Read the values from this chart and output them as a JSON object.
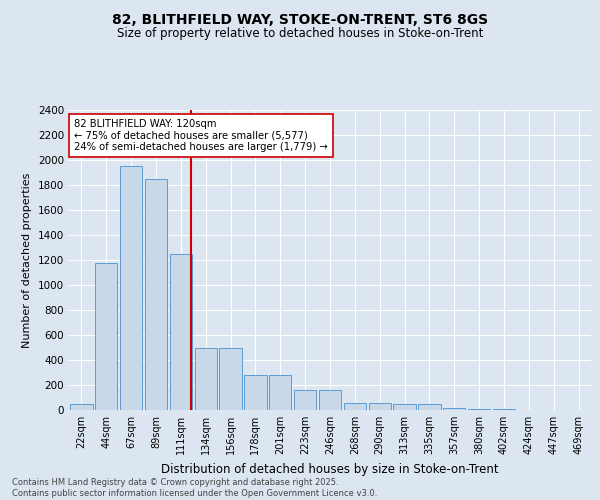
{
  "title1": "82, BLITHFIELD WAY, STOKE-ON-TRENT, ST6 8GS",
  "title2": "Size of property relative to detached houses in Stoke-on-Trent",
  "xlabel": "Distribution of detached houses by size in Stoke-on-Trent",
  "ylabel": "Number of detached properties",
  "categories": [
    "22sqm",
    "44sqm",
    "67sqm",
    "89sqm",
    "111sqm",
    "134sqm",
    "156sqm",
    "178sqm",
    "201sqm",
    "223sqm",
    "246sqm",
    "268sqm",
    "290sqm",
    "313sqm",
    "335sqm",
    "357sqm",
    "380sqm",
    "402sqm",
    "424sqm",
    "447sqm",
    "469sqm"
  ],
  "values": [
    50,
    1175,
    1950,
    1850,
    1250,
    500,
    500,
    280,
    280,
    160,
    160,
    60,
    60,
    50,
    50,
    15,
    10,
    5,
    3,
    2,
    1
  ],
  "bar_color": "#c8d8e8",
  "bar_edge_color": "#5b9bd5",
  "vline_color": "#cc0000",
  "annotation_text": "82 BLITHFIELD WAY: 120sqm\n← 75% of detached houses are smaller (5,577)\n24% of semi-detached houses are larger (1,779) →",
  "annotation_box_color": "#ffffff",
  "annotation_box_edge": "#cc0000",
  "bg_color": "#dce6f0",
  "grid_color": "#ffffff",
  "footnote": "Contains HM Land Registry data © Crown copyright and database right 2025.\nContains public sector information licensed under the Open Government Licence v3.0.",
  "ylim": [
    0,
    2400
  ],
  "yticks": [
    0,
    200,
    400,
    600,
    800,
    1000,
    1200,
    1400,
    1600,
    1800,
    2000,
    2200,
    2400
  ]
}
